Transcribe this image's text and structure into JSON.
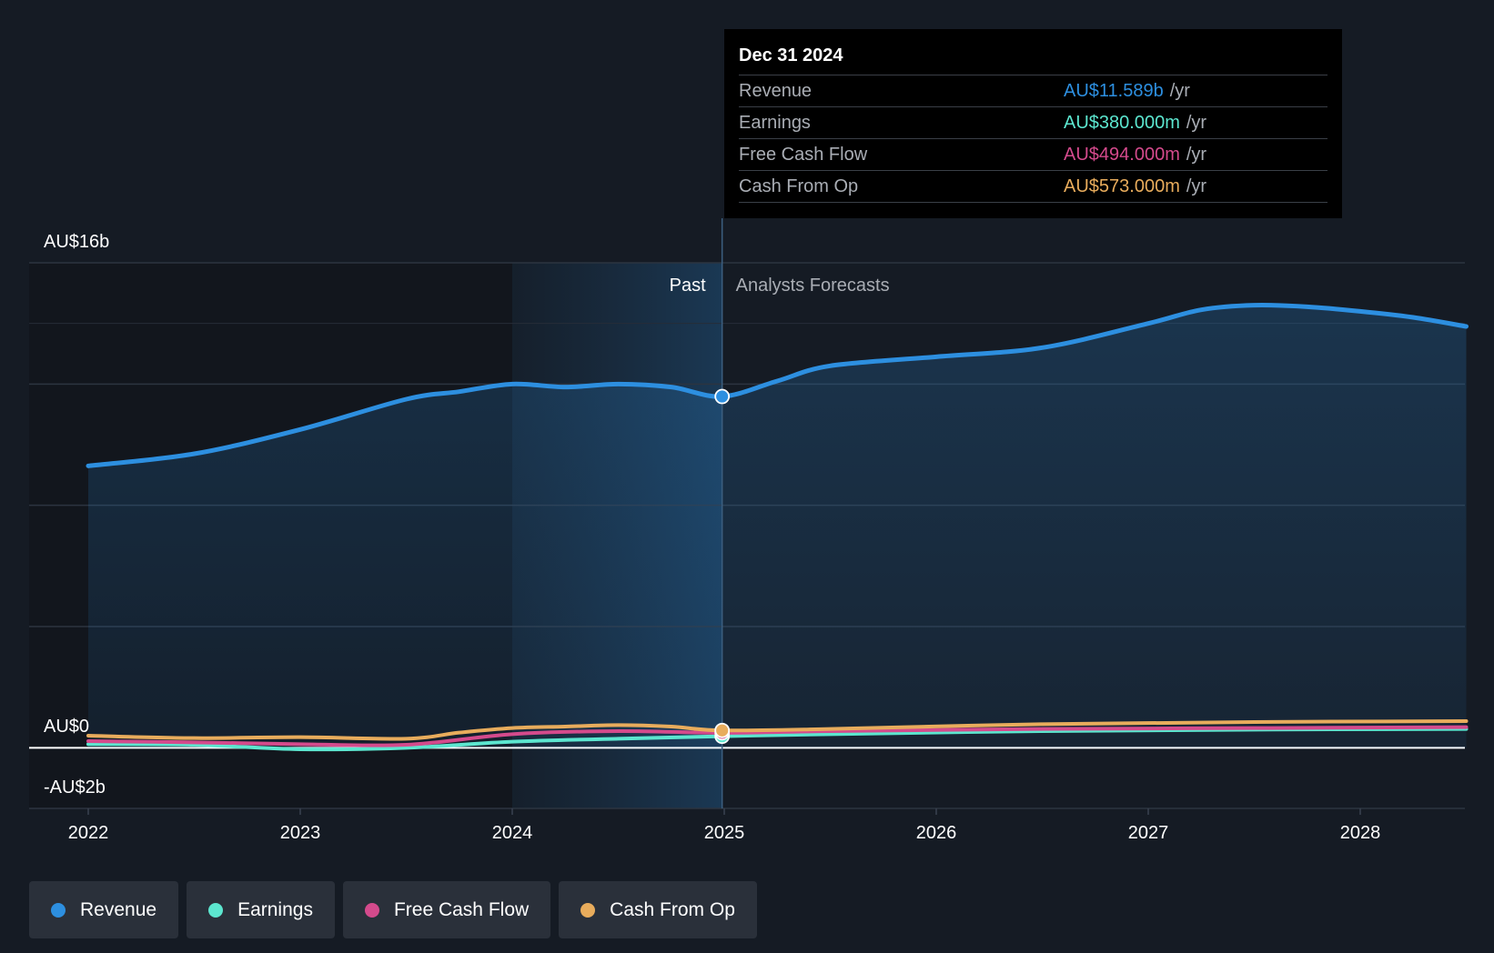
{
  "chart_data": {
    "type": "area",
    "x_ticks": [
      "2022",
      "2023",
      "2024",
      "2025",
      "2026",
      "2027",
      "2028"
    ],
    "y_labels": [
      "AU$16b",
      "AU$0",
      "-AU$2b"
    ],
    "ylim": [
      -2,
      16
    ],
    "xlim": [
      2021.7,
      2028.5
    ],
    "past_label": "Past",
    "forecast_label": "Analysts Forecasts",
    "highlight_x": 2024.99,
    "highlight_start": 2024.0,
    "series": [
      {
        "name": "Revenue",
        "color": "#2d8fe0",
        "x": [
          2022.0,
          2022.5,
          2023.0,
          2023.5,
          2023.75,
          2024.0,
          2024.25,
          2024.5,
          2024.75,
          2024.99,
          2025.25,
          2025.5,
          2026.0,
          2026.5,
          2027.0,
          2027.25,
          2027.5,
          2027.75,
          2028.0,
          2028.25,
          2028.5
        ],
        "y": [
          9.3,
          9.7,
          10.5,
          11.5,
          11.75,
          12.0,
          11.9,
          12.0,
          11.9,
          11.589,
          12.1,
          12.6,
          12.9,
          13.2,
          14.0,
          14.45,
          14.6,
          14.55,
          14.4,
          14.2,
          13.9
        ]
      },
      {
        "name": "Earnings",
        "color": "#5ce6cf",
        "x": [
          2022.0,
          2022.5,
          2023.0,
          2023.5,
          2024.0,
          2024.5,
          2024.99,
          2025.5,
          2026.5,
          2027.5,
          2028.5
        ],
        "y": [
          0.12,
          0.1,
          -0.05,
          0.0,
          0.2,
          0.3,
          0.38,
          0.45,
          0.55,
          0.6,
          0.62
        ]
      },
      {
        "name": "Free Cash Flow",
        "color": "#d44a8c",
        "x": [
          2022.0,
          2022.5,
          2023.0,
          2023.5,
          2024.0,
          2024.5,
          2024.99,
          2025.5,
          2026.5,
          2027.5,
          2028.5
        ],
        "y": [
          0.22,
          0.18,
          0.12,
          0.1,
          0.45,
          0.55,
          0.494,
          0.55,
          0.62,
          0.65,
          0.68
        ]
      },
      {
        "name": "Cash From Op",
        "color": "#e8ac5c",
        "x": [
          2022.0,
          2022.5,
          2023.0,
          2023.5,
          2023.75,
          2024.0,
          2024.25,
          2024.5,
          2024.75,
          2024.99,
          2025.5,
          2026.5,
          2027.5,
          2028.5
        ],
        "y": [
          0.4,
          0.32,
          0.35,
          0.3,
          0.5,
          0.65,
          0.7,
          0.75,
          0.7,
          0.573,
          0.62,
          0.78,
          0.85,
          0.88
        ]
      }
    ]
  },
  "tooltip": {
    "date": "Dec 31 2024",
    "rows": [
      {
        "label": "Revenue",
        "value": "AU$11.589b",
        "unit": "/yr",
        "color": "#2d8fe0"
      },
      {
        "label": "Earnings",
        "value": "AU$380.000m",
        "unit": "/yr",
        "color": "#5ce6cf"
      },
      {
        "label": "Free Cash Flow",
        "value": "AU$494.000m",
        "unit": "/yr",
        "color": "#d44a8c"
      },
      {
        "label": "Cash From Op",
        "value": "AU$573.000m",
        "unit": "/yr",
        "color": "#e8ac5c"
      }
    ]
  },
  "legend": [
    {
      "label": "Revenue",
      "color": "#2d8fe0"
    },
    {
      "label": "Earnings",
      "color": "#5ce6cf"
    },
    {
      "label": "Free Cash Flow",
      "color": "#d44a8c"
    },
    {
      "label": "Cash From Op",
      "color": "#e8ac5c"
    }
  ]
}
